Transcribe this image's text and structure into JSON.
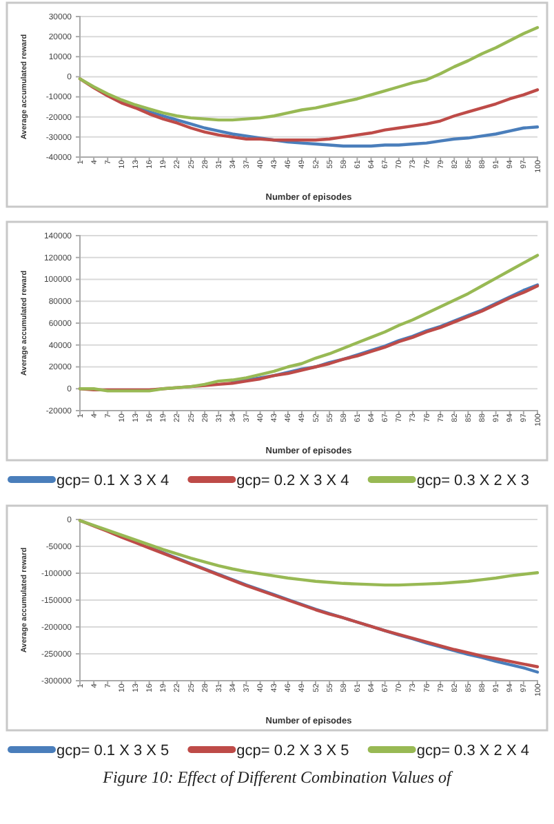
{
  "chart_data": [
    {
      "type": "line",
      "xlabel": "Number of episodes",
      "ylabel": "Average accumulated reward",
      "x": [
        1,
        4,
        7,
        10,
        13,
        16,
        19,
        22,
        25,
        28,
        31,
        34,
        37,
        40,
        43,
        46,
        49,
        52,
        55,
        58,
        61,
        64,
        67,
        70,
        73,
        76,
        79,
        82,
        85,
        88,
        91,
        94,
        97,
        100
      ],
      "xlim": [
        1,
        100
      ],
      "xticks": [
        1,
        4,
        7,
        10,
        13,
        16,
        19,
        22,
        25,
        28,
        31,
        34,
        37,
        40,
        43,
        46,
        49,
        52,
        55,
        58,
        61,
        64,
        67,
        70,
        73,
        76,
        79,
        82,
        85,
        88,
        91,
        94,
        97,
        100
      ],
      "ylim": [
        -40000,
        30000
      ],
      "yticks": [
        -40000,
        -30000,
        -20000,
        -10000,
        0,
        10000,
        20000,
        30000
      ],
      "grid": "y",
      "legend": false,
      "marker": "none",
      "line_style": "solid",
      "series": [
        {
          "color": "#4a7ebb",
          "values": [
            null,
            null,
            null,
            -12500,
            -15000,
            -17500,
            -19500,
            -21500,
            -23500,
            -25500,
            -27000,
            -28500,
            -29500,
            -30500,
            -31500,
            -32500,
            -33000,
            -33500,
            -34000,
            -34500,
            -34500,
            -34500,
            -34000,
            -34000,
            -33500,
            -33000,
            -32000,
            -31000,
            -30500,
            -29500,
            -28500,
            -27000,
            -25500,
            -25000
          ]
        },
        {
          "color": "#be4b48",
          "values": [
            -1000,
            -5500,
            -9500,
            -13000,
            -15500,
            -18500,
            -21000,
            -23000,
            -25500,
            -27500,
            -29000,
            -30000,
            -31000,
            -31000,
            -31500,
            -31500,
            -31500,
            -31500,
            -31000,
            -30000,
            -29000,
            -28000,
            -26500,
            -25500,
            -24500,
            -23500,
            -22000,
            -19500,
            -17500,
            -15500,
            -13500,
            -11000,
            -9000,
            -6500
          ]
        },
        {
          "color": "#98b954",
          "values": [
            -1000,
            -5000,
            -8500,
            -11500,
            -14000,
            -16000,
            -18000,
            -19500,
            -20500,
            -21000,
            -21500,
            -21500,
            -21000,
            -20500,
            -19500,
            -18000,
            -16500,
            -15500,
            -14000,
            -12500,
            -11000,
            -9000,
            -7000,
            -5000,
            -3000,
            -1500,
            1500,
            5000,
            8000,
            11500,
            14500,
            18000,
            21500,
            24500
          ]
        }
      ]
    },
    {
      "type": "line",
      "xlabel": "Number of episodes",
      "ylabel": "Average accumulated reward",
      "x": [
        1,
        4,
        7,
        10,
        13,
        16,
        19,
        22,
        25,
        28,
        31,
        34,
        37,
        40,
        43,
        46,
        49,
        52,
        55,
        58,
        61,
        64,
        67,
        70,
        73,
        76,
        79,
        82,
        85,
        88,
        91,
        94,
        97,
        100
      ],
      "xlim": [
        1,
        100
      ],
      "xticks": [
        1,
        4,
        7,
        10,
        13,
        16,
        19,
        22,
        25,
        28,
        31,
        34,
        37,
        40,
        43,
        46,
        49,
        52,
        55,
        58,
        61,
        64,
        67,
        70,
        73,
        76,
        79,
        82,
        85,
        88,
        91,
        94,
        97,
        100
      ],
      "ylim": [
        -20000,
        140000
      ],
      "yticks": [
        -20000,
        0,
        20000,
        40000,
        60000,
        80000,
        100000,
        120000,
        140000
      ],
      "grid": "y",
      "legend": "bottom",
      "marker": "none",
      "line_style": "solid",
      "series": [
        {
          "name": "gcp= 0.1 X 3 X 4",
          "color": "#4a7ebb",
          "values": [
            null,
            null,
            null,
            null,
            null,
            null,
            null,
            null,
            null,
            null,
            null,
            6000,
            8000,
            10000,
            12000,
            15000,
            18000,
            20000,
            24000,
            27000,
            31000,
            35000,
            39000,
            44000,
            48000,
            53000,
            57000,
            62000,
            67000,
            72000,
            78000,
            84000,
            90000,
            95000
          ]
        },
        {
          "name": "gcp= 0.2 X 3 X 4",
          "color": "#be4b48",
          "values": [
            0,
            -1000,
            -1000,
            -1000,
            -1000,
            -1000,
            0,
            1000,
            2000,
            3000,
            4000,
            5000,
            7000,
            9000,
            12000,
            14000,
            17000,
            20000,
            23000,
            27000,
            30000,
            34000,
            38000,
            43000,
            47000,
            52000,
            56000,
            61000,
            66000,
            71000,
            77000,
            83000,
            88000,
            94000
          ]
        },
        {
          "name": "gcp= 0.3 X 2 X 3",
          "color": "#98b954",
          "values": [
            0,
            0,
            -2000,
            -2000,
            -2000,
            -2000,
            0,
            1000,
            2000,
            4000,
            7000,
            8000,
            10000,
            13000,
            16000,
            20000,
            23000,
            28000,
            32000,
            37000,
            42000,
            47000,
            52000,
            58000,
            63000,
            69000,
            75000,
            81000,
            87000,
            94000,
            101000,
            108000,
            115000,
            122000
          ]
        }
      ]
    },
    {
      "type": "line",
      "xlabel": "Number of episodes",
      "ylabel": "Average accumulated reward",
      "x": [
        1,
        4,
        7,
        10,
        13,
        16,
        19,
        22,
        25,
        28,
        31,
        34,
        37,
        40,
        43,
        46,
        49,
        52,
        55,
        58,
        61,
        64,
        67,
        70,
        73,
        76,
        79,
        82,
        85,
        88,
        91,
        94,
        97,
        100
      ],
      "xlim": [
        1,
        100
      ],
      "xticks": [
        1,
        4,
        7,
        10,
        13,
        16,
        19,
        22,
        25,
        28,
        31,
        34,
        37,
        40,
        43,
        46,
        49,
        52,
        55,
        58,
        61,
        64,
        67,
        70,
        73,
        76,
        79,
        82,
        85,
        88,
        91,
        94,
        97,
        100
      ],
      "ylim": [
        -300000,
        0
      ],
      "yticks": [
        -300000,
        -250000,
        -200000,
        -150000,
        -100000,
        -50000,
        0
      ],
      "grid": "y",
      "legend": "bottom",
      "marker": "none",
      "line_style": "solid",
      "annotations": [
        "Figure 10: Effect of Different Combination Values of"
      ],
      "series": [
        {
          "name": "gcp= 0.1 X 3 X 5",
          "color": "#4a7ebb",
          "values": [
            null,
            null,
            null,
            null,
            null,
            -52000,
            -62000,
            -72000,
            -82000,
            -92000,
            -102000,
            -112000,
            -122000,
            -131000,
            -140000,
            -149000,
            -158000,
            -167000,
            -175000,
            -183000,
            null,
            null,
            -207000,
            -215000,
            -222000,
            -230000,
            -237000,
            -244000,
            -251000,
            -257000,
            -264000,
            -270000,
            -276000,
            -284000
          ]
        },
        {
          "name": "gcp= 0.2 X 3 X 5",
          "color": "#be4b48",
          "values": [
            -2000,
            -12000,
            -22000,
            -33000,
            -43000,
            -53000,
            -63000,
            -73000,
            -83000,
            -93000,
            -103000,
            -113000,
            -123000,
            -132000,
            -141000,
            -150000,
            -159000,
            -168000,
            -176000,
            -183000,
            -191000,
            -199000,
            -207000,
            -214000,
            -221000,
            -228000,
            -235000,
            -242000,
            -248000,
            -254000,
            -259000,
            -264000,
            -269000,
            -274000
          ]
        },
        {
          "name": "gcp= 0.3 X 2 X 4",
          "color": "#98b954",
          "values": [
            -2000,
            -11000,
            -20000,
            -29000,
            -38000,
            -47000,
            -56000,
            -64000,
            -72000,
            -79000,
            -86000,
            -92000,
            -97000,
            -101000,
            -105000,
            -109000,
            -112000,
            -115000,
            -117000,
            -119000,
            -120000,
            -121000,
            -122000,
            -122000,
            -121000,
            -120000,
            -119000,
            -117000,
            -115000,
            -112000,
            -109000,
            -105000,
            -102000,
            -99000
          ]
        }
      ]
    }
  ]
}
